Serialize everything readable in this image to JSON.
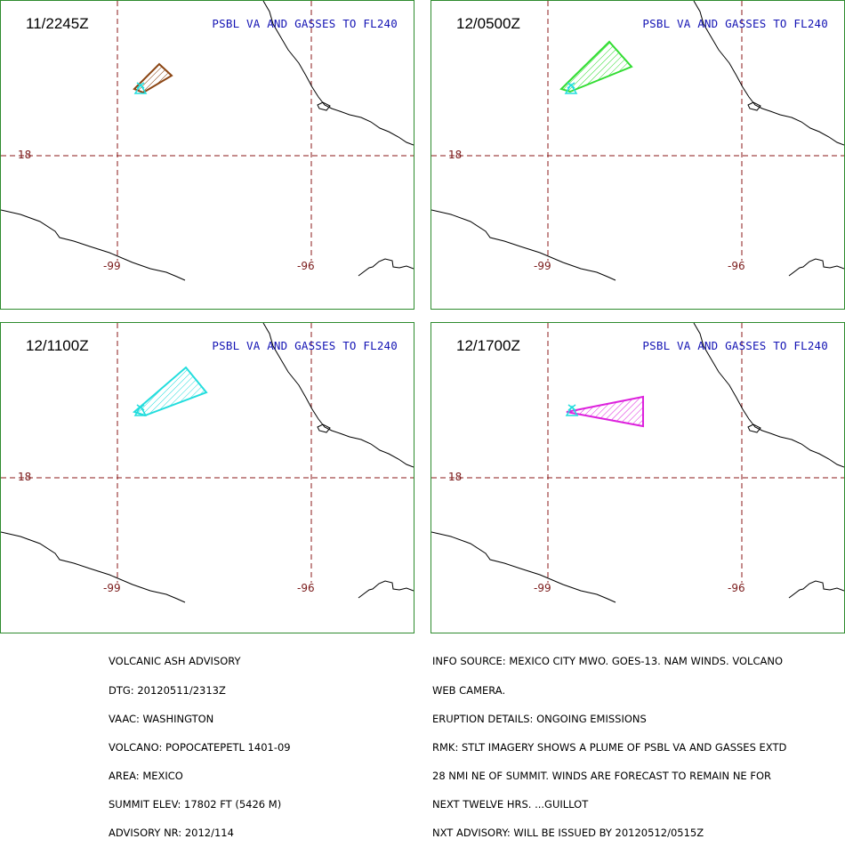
{
  "panels": [
    {
      "time": "11/2245Z",
      "header": "PSBL VA AND GASSES TO FL240",
      "plume_color": "#8b4513"
    },
    {
      "time": "12/0500Z",
      "header": "PSBL VA AND GASSES TO FL240",
      "plume_color": "#33dd33"
    },
    {
      "time": "12/1100Z",
      "header": "PSBL VA AND GASSES TO FL240",
      "plume_color": "#22dddd"
    },
    {
      "time": "12/1700Z",
      "header": "PSBL VA AND GASSES TO FL240",
      "plume_color": "#dd22dd"
    }
  ],
  "grid_labels": {
    "lat": "18",
    "lon_west": "-99",
    "lon_east": "-96"
  },
  "advisory_left": [
    "VOLCANIC ASH ADVISORY",
    "DTG: 20120511/2313Z",
    "VAAC: WASHINGTON",
    "VOLCANO: POPOCATEPETL 1401-09",
    "AREA: MEXICO",
    "SUMMIT ELEV: 17802 FT (5426 M)",
    "ADVISORY NR: 2012/114"
  ],
  "advisory_right": [
    "INFO SOURCE: MEXICO CITY MWO. GOES-13. NAM WINDS. VOLCANO",
    "WEB CAMERA.",
    "ERUPTION DETAILS: ONGOING EMISSIONS",
    "RMK: STLT IMAGERY SHOWS A PLUME OF PSBL VA AND GASSES EXTD",
    "28 NMI NE OF SUMMIT. WINDS ARE FORECAST TO REMAIN NE FOR",
    "NEXT TWELVE HRS. ...GUILLOT",
    "NXT ADVISORY: WILL BE ISSUED BY 20120512/0515Z"
  ],
  "colors": {
    "frame": "#2e8b2e",
    "grid": "#8b1a1a",
    "header": "#1414b4",
    "coast": "#000000"
  }
}
